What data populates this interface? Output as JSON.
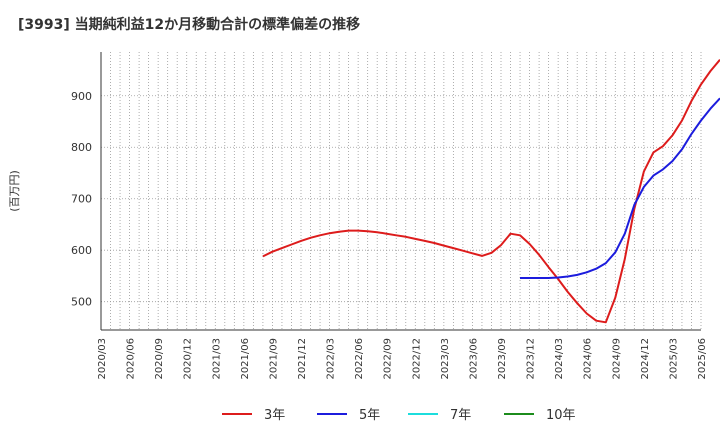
{
  "chart_data": {
    "type": "line",
    "title": "[3993]  当期純利益12か月移動合計の標準偏差の推移",
    "ylabel": "(百万円)",
    "xlabel": "",
    "ylim": [
      445,
      985
    ],
    "yticks": [
      500,
      600,
      700,
      800,
      900
    ],
    "x_start": "2020-03",
    "x_end": "2025-06",
    "xtick_labels": [
      "2020/03",
      "2020/06",
      "2020/09",
      "2020/12",
      "2021/03",
      "2021/06",
      "2021/09",
      "2021/12",
      "2022/03",
      "2022/06",
      "2022/09",
      "2022/12",
      "2023/03",
      "2023/06",
      "2023/09",
      "2023/12",
      "2024/03",
      "2024/06",
      "2024/09",
      "2024/12",
      "2025/03",
      "2025/06"
    ],
    "grid": true,
    "legend_position": "bottom",
    "series": [
      {
        "name": "3年",
        "color": "#dd1c1c",
        "points": [
          [
            "2021-08",
            588
          ],
          [
            "2021-09",
            597
          ],
          [
            "2021-10",
            604
          ],
          [
            "2021-11",
            611
          ],
          [
            "2021-12",
            618
          ],
          [
            "2022-01",
            624
          ],
          [
            "2022-02",
            629
          ],
          [
            "2022-03",
            633
          ],
          [
            "2022-04",
            636
          ],
          [
            "2022-05",
            638
          ],
          [
            "2022-06",
            638
          ],
          [
            "2022-07",
            637
          ],
          [
            "2022-08",
            635
          ],
          [
            "2022-09",
            632
          ],
          [
            "2022-10",
            629
          ],
          [
            "2022-11",
            626
          ],
          [
            "2022-12",
            622
          ],
          [
            "2023-01",
            618
          ],
          [
            "2023-02",
            614
          ],
          [
            "2023-03",
            609
          ],
          [
            "2023-04",
            604
          ],
          [
            "2023-05",
            599
          ],
          [
            "2023-06",
            594
          ],
          [
            "2023-07",
            589
          ],
          [
            "2023-08",
            595
          ],
          [
            "2023-09",
            610
          ],
          [
            "2023-10",
            632
          ],
          [
            "2023-11",
            629
          ],
          [
            "2023-12",
            612
          ],
          [
            "2024-01",
            591
          ],
          [
            "2024-02",
            567
          ],
          [
            "2024-03",
            544
          ],
          [
            "2024-04",
            519
          ],
          [
            "2024-05",
            497
          ],
          [
            "2024-06",
            477
          ],
          [
            "2024-07",
            463
          ],
          [
            "2024-08",
            460
          ],
          [
            "2024-09",
            508
          ],
          [
            "2024-10",
            583
          ],
          [
            "2024-11",
            680
          ],
          [
            "2024-12",
            753
          ],
          [
            "2025-01",
            790
          ],
          [
            "2025-02",
            802
          ],
          [
            "2025-03",
            823
          ],
          [
            "2025-04",
            852
          ],
          [
            "2025-05",
            890
          ],
          [
            "2025-06",
            922
          ],
          [
            "2025-07",
            948
          ],
          [
            "2025-08",
            970
          ]
        ]
      },
      {
        "name": "5年",
        "color": "#1c1cdd",
        "points": [
          [
            "2023-11",
            546
          ],
          [
            "2023-12",
            546
          ],
          [
            "2024-01",
            546
          ],
          [
            "2024-02",
            546
          ],
          [
            "2024-03",
            547
          ],
          [
            "2024-04",
            549
          ],
          [
            "2024-05",
            552
          ],
          [
            "2024-06",
            557
          ],
          [
            "2024-07",
            564
          ],
          [
            "2024-08",
            575
          ],
          [
            "2024-09",
            596
          ],
          [
            "2024-10",
            632
          ],
          [
            "2024-11",
            688
          ],
          [
            "2024-12",
            723
          ],
          [
            "2025-01",
            745
          ],
          [
            "2025-02",
            757
          ],
          [
            "2025-03",
            773
          ],
          [
            "2025-04",
            796
          ],
          [
            "2025-05",
            826
          ],
          [
            "2025-06",
            852
          ],
          [
            "2025-07",
            875
          ],
          [
            "2025-08",
            895
          ]
        ]
      },
      {
        "name": "7年",
        "color": "#1cdddd",
        "points": []
      },
      {
        "name": "10年",
        "color": "#1c8c1c",
        "points": []
      }
    ]
  }
}
